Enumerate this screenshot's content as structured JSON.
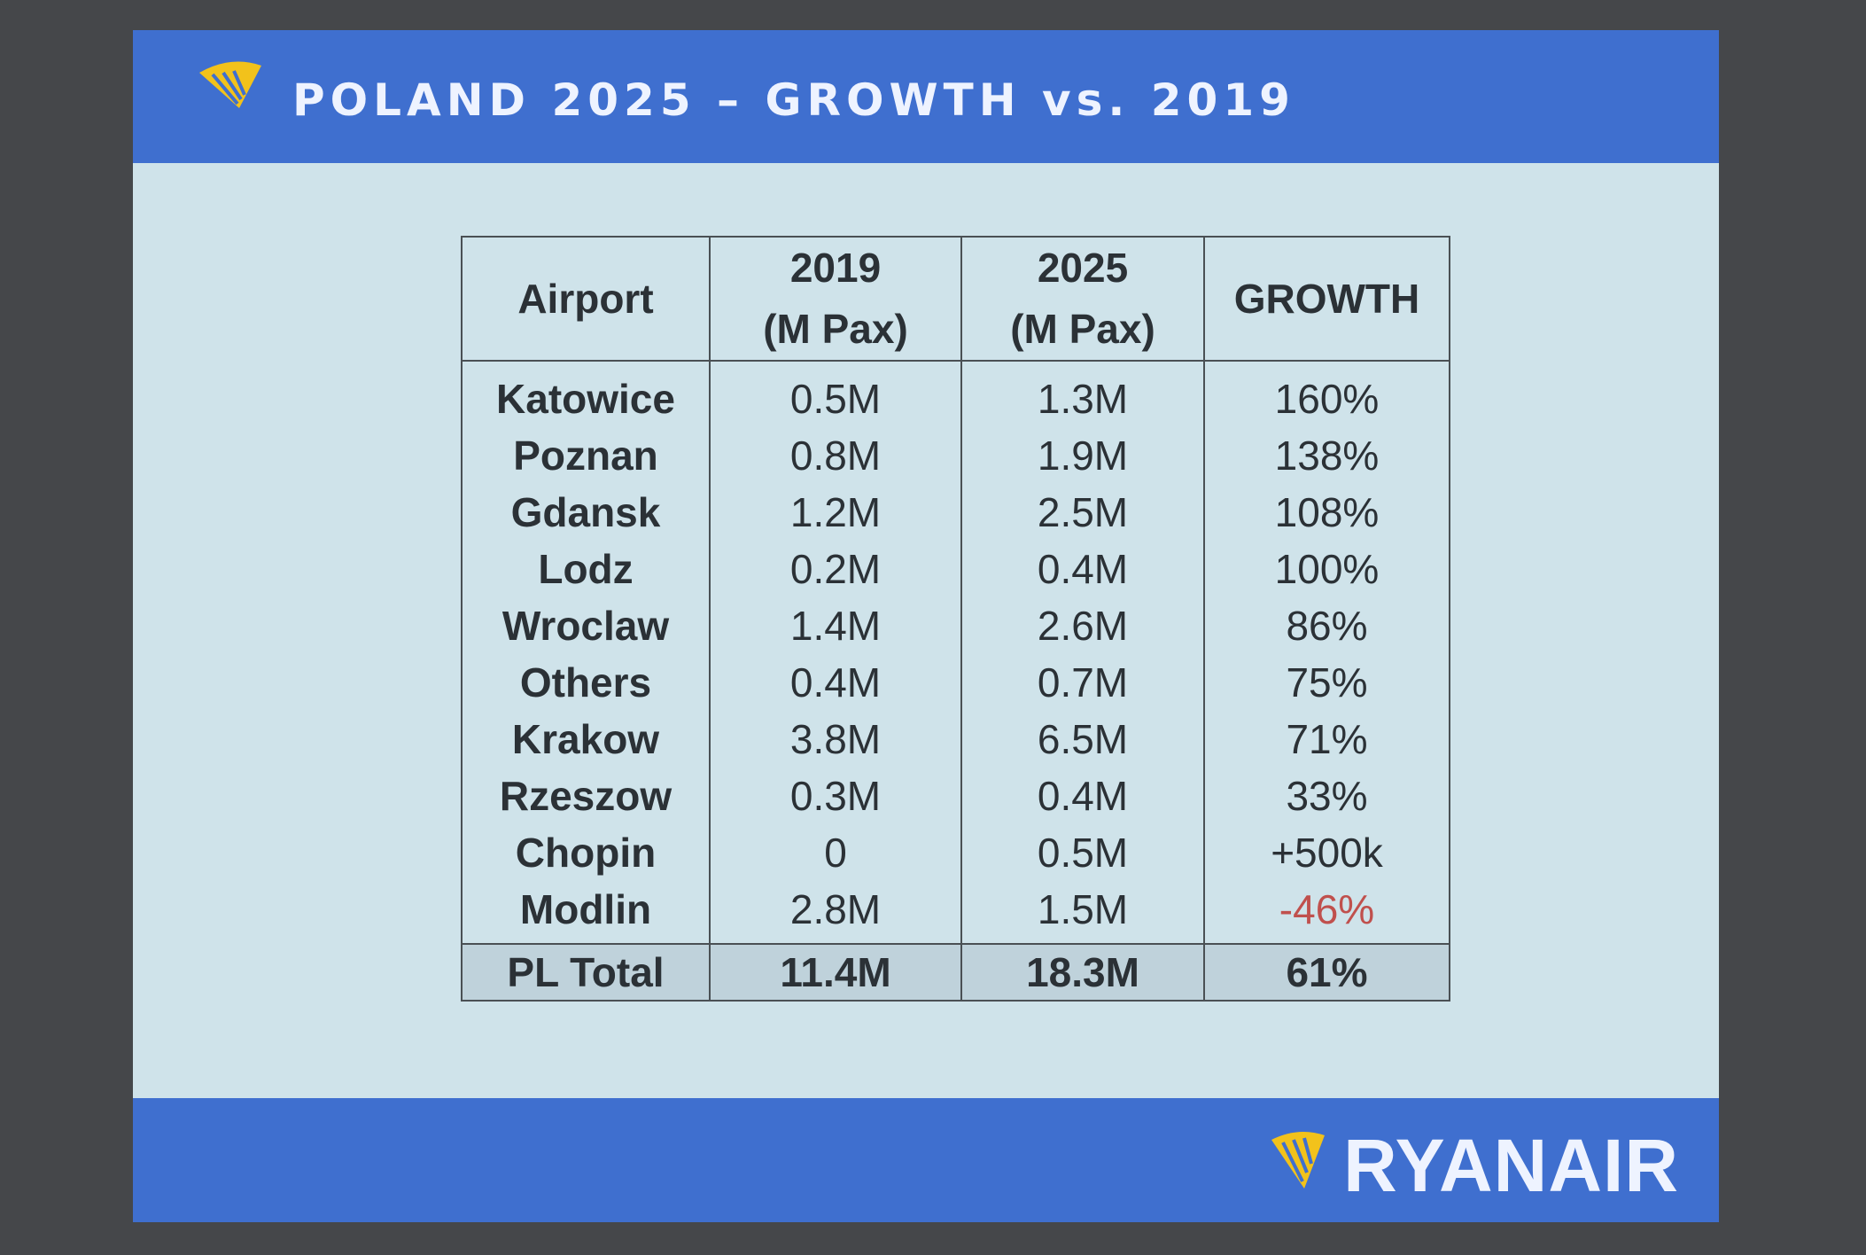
{
  "header": {
    "title": "POLAND 2025 – GROWTH vs. 2019"
  },
  "table": {
    "headers": [
      [
        "Airport"
      ],
      [
        "2019",
        "(M Pax)"
      ],
      [
        "2025",
        "(M Pax)"
      ],
      [
        "GROWTH"
      ]
    ],
    "rows": [
      [
        "Katowice",
        "0.5M",
        "1.3M",
        "160%"
      ],
      [
        "Poznan",
        "0.8M",
        "1.9M",
        "138%"
      ],
      [
        "Gdansk",
        "1.2M",
        "2.5M",
        "108%"
      ],
      [
        "Lodz",
        "0.2M",
        "0.4M",
        "100%"
      ],
      [
        "Wroclaw",
        "1.4M",
        "2.6M",
        "86%"
      ],
      [
        "Others",
        "0.4M",
        "0.7M",
        "75%"
      ],
      [
        "Krakow",
        "3.8M",
        "6.5M",
        "71%"
      ],
      [
        "Rzeszow",
        "0.3M",
        "0.4M",
        "33%"
      ],
      [
        "Chopin",
        "0",
        "0.5M",
        "+500k"
      ],
      [
        "Modlin",
        "2.8M",
        "1.5M",
        "-46%"
      ]
    ],
    "total": [
      "PL Total",
      "11.4M",
      "18.3M",
      "61%"
    ]
  },
  "footer": {
    "brand": "RYANAIR"
  }
}
